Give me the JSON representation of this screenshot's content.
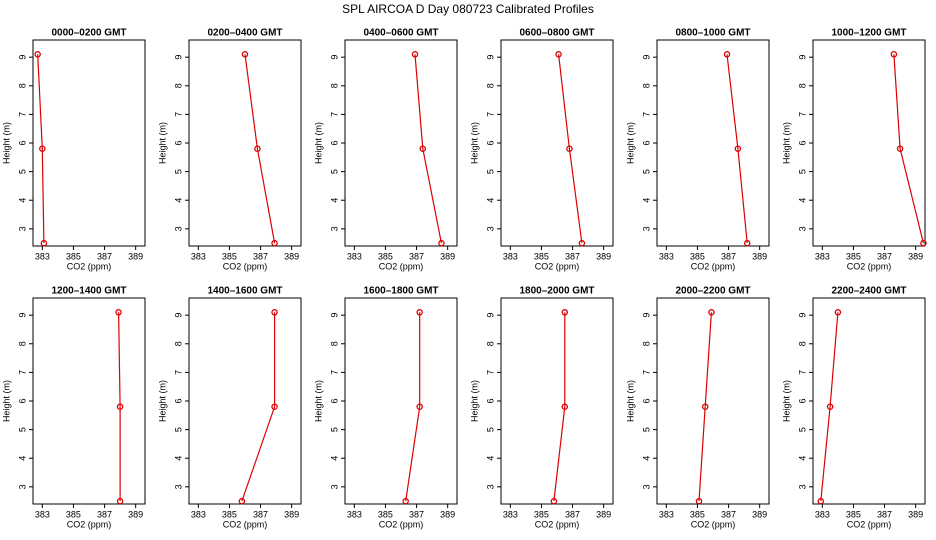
{
  "title": "SPL AIRCOA D  Day 080723  Calibrated Profiles",
  "chart_data": [
    {
      "type": "line",
      "title": "0000–0200 GMT",
      "xlabel": "CO2 (ppm)",
      "ylabel": "Height (m)",
      "x": [
        382.7,
        383.0,
        383.1
      ],
      "values": [
        9.1,
        5.8,
        2.5
      ],
      "color": "#dd0000",
      "xlim": [
        382.4,
        389.6
      ],
      "ylim": [
        2.4,
        9.6
      ],
      "xticks": [
        383,
        385,
        387,
        389
      ],
      "yticks": [
        3,
        4,
        5,
        6,
        7,
        8,
        9
      ]
    },
    {
      "type": "line",
      "title": "0200–0400 GMT",
      "xlabel": "CO2 (ppm)",
      "ylabel": "Height (m)",
      "x": [
        386.0,
        386.8,
        387.9
      ],
      "values": [
        9.1,
        5.8,
        2.5
      ],
      "color": "#dd0000",
      "xlim": [
        382.4,
        389.6
      ],
      "ylim": [
        2.4,
        9.6
      ],
      "xticks": [
        383,
        385,
        387,
        389
      ],
      "yticks": [
        3,
        4,
        5,
        6,
        7,
        8,
        9
      ]
    },
    {
      "type": "line",
      "title": "0400–0600 GMT",
      "xlabel": "CO2 (ppm)",
      "ylabel": "Height (m)",
      "x": [
        386.9,
        387.4,
        388.6
      ],
      "values": [
        9.1,
        5.8,
        2.5
      ],
      "color": "#dd0000",
      "xlim": [
        382.4,
        389.6
      ],
      "ylim": [
        2.4,
        9.6
      ],
      "xticks": [
        383,
        385,
        387,
        389
      ],
      "yticks": [
        3,
        4,
        5,
        6,
        7,
        8,
        9
      ]
    },
    {
      "type": "line",
      "title": "0600–0800 GMT",
      "xlabel": "CO2 (ppm)",
      "ylabel": "Height (m)",
      "x": [
        386.1,
        386.8,
        387.6
      ],
      "values": [
        9.1,
        5.8,
        2.5
      ],
      "color": "#dd0000",
      "xlim": [
        382.4,
        389.6
      ],
      "ylim": [
        2.4,
        9.6
      ],
      "xticks": [
        383,
        385,
        387,
        389
      ],
      "yticks": [
        3,
        4,
        5,
        6,
        7,
        8,
        9
      ]
    },
    {
      "type": "line",
      "title": "0800–1000 GMT",
      "xlabel": "CO2 (ppm)",
      "ylabel": "Height (m)",
      "x": [
        386.9,
        387.6,
        388.2
      ],
      "values": [
        9.1,
        5.8,
        2.5
      ],
      "color": "#dd0000",
      "xlim": [
        382.4,
        389.6
      ],
      "ylim": [
        2.4,
        9.6
      ],
      "xticks": [
        383,
        385,
        387,
        389
      ],
      "yticks": [
        3,
        4,
        5,
        6,
        7,
        8,
        9
      ]
    },
    {
      "type": "line",
      "title": "1000–1200 GMT",
      "xlabel": "CO2 (ppm)",
      "ylabel": "Height (m)",
      "x": [
        387.6,
        388.0,
        389.5
      ],
      "values": [
        9.1,
        5.8,
        2.5
      ],
      "color": "#dd0000",
      "xlim": [
        382.4,
        389.6
      ],
      "ylim": [
        2.4,
        9.6
      ],
      "xticks": [
        383,
        385,
        387,
        389
      ],
      "yticks": [
        3,
        4,
        5,
        6,
        7,
        8,
        9
      ]
    },
    {
      "type": "line",
      "title": "1200–1400 GMT",
      "xlabel": "CO2 (ppm)",
      "ylabel": "Height (m)",
      "x": [
        387.9,
        388.0,
        388.0
      ],
      "values": [
        9.1,
        5.8,
        2.5
      ],
      "color": "#dd0000",
      "xlim": [
        382.4,
        389.6
      ],
      "ylim": [
        2.4,
        9.6
      ],
      "xticks": [
        383,
        385,
        387,
        389
      ],
      "yticks": [
        3,
        4,
        5,
        6,
        7,
        8,
        9
      ]
    },
    {
      "type": "line",
      "title": "1400–1600 GMT",
      "xlabel": "CO2 (ppm)",
      "ylabel": "Height (m)",
      "x": [
        387.9,
        387.9,
        385.8
      ],
      "values": [
        9.1,
        5.8,
        2.5
      ],
      "color": "#dd0000",
      "xlim": [
        382.4,
        389.6
      ],
      "ylim": [
        2.4,
        9.6
      ],
      "xticks": [
        383,
        385,
        387,
        389
      ],
      "yticks": [
        3,
        4,
        5,
        6,
        7,
        8,
        9
      ]
    },
    {
      "type": "line",
      "title": "1600–1800 GMT",
      "xlabel": "CO2 (ppm)",
      "ylabel": "Height (m)",
      "x": [
        387.2,
        387.2,
        386.3
      ],
      "values": [
        9.1,
        5.8,
        2.5
      ],
      "color": "#dd0000",
      "xlim": [
        382.4,
        389.6
      ],
      "ylim": [
        2.4,
        9.6
      ],
      "xticks": [
        383,
        385,
        387,
        389
      ],
      "yticks": [
        3,
        4,
        5,
        6,
        7,
        8,
        9
      ]
    },
    {
      "type": "line",
      "title": "1800–2000 GMT",
      "xlabel": "CO2 (ppm)",
      "ylabel": "Height (m)",
      "x": [
        386.5,
        386.5,
        385.8
      ],
      "values": [
        9.1,
        5.8,
        2.5
      ],
      "color": "#dd0000",
      "xlim": [
        382.4,
        389.6
      ],
      "ylim": [
        2.4,
        9.6
      ],
      "xticks": [
        383,
        385,
        387,
        389
      ],
      "yticks": [
        3,
        4,
        5,
        6,
        7,
        8,
        9
      ]
    },
    {
      "type": "line",
      "title": "2000–2200 GMT",
      "xlabel": "CO2 (ppm)",
      "ylabel": "Height (m)",
      "x": [
        385.9,
        385.5,
        385.1
      ],
      "values": [
        9.1,
        5.8,
        2.5
      ],
      "color": "#dd0000",
      "xlim": [
        382.4,
        389.6
      ],
      "ylim": [
        2.4,
        9.6
      ],
      "xticks": [
        383,
        385,
        387,
        389
      ],
      "yticks": [
        3,
        4,
        5,
        6,
        7,
        8,
        9
      ]
    },
    {
      "type": "line",
      "title": "2200–2400 GMT",
      "xlabel": "CO2 (ppm)",
      "ylabel": "Height (m)",
      "x": [
        384.0,
        383.5,
        382.9
      ],
      "values": [
        9.1,
        5.8,
        2.5
      ],
      "color": "#dd0000",
      "xlim": [
        382.4,
        389.6
      ],
      "ylim": [
        2.4,
        9.6
      ],
      "xticks": [
        383,
        385,
        387,
        389
      ],
      "yticks": [
        3,
        4,
        5,
        6,
        7,
        8,
        9
      ]
    }
  ]
}
